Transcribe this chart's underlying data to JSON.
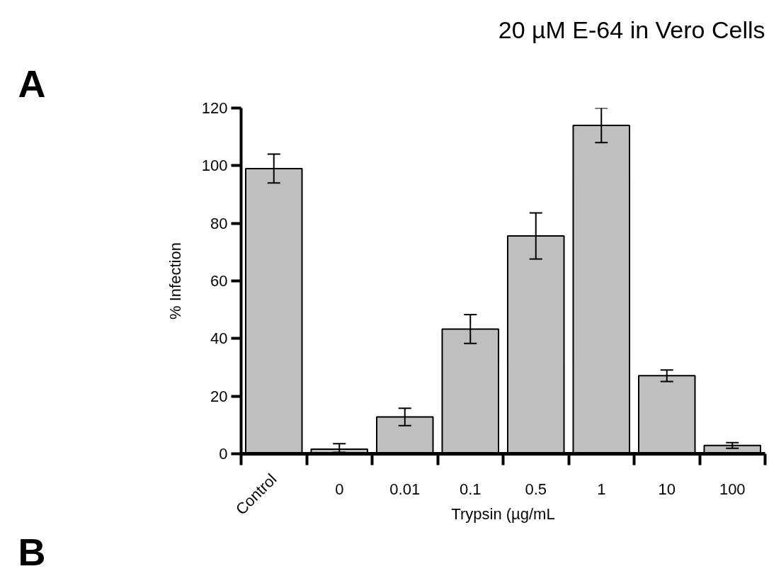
{
  "chart_data": {
    "type": "bar",
    "title": "20 µM E-64 in Vero Cells",
    "xlabel": "Trypsin (µg/mL",
    "ylabel": "% Infection",
    "categories": [
      "Control",
      "0",
      "0.01",
      "0.1",
      "0.5",
      "1",
      "10",
      "100"
    ],
    "values": [
      99,
      1.6,
      12.8,
      43.3,
      75.6,
      114,
      27.1,
      2.9
    ],
    "errors": [
      5,
      [
        0.5,
        3.5
      ],
      3,
      5,
      8,
      6,
      2,
      1
    ],
    "color": "#bfbfbf",
    "ylim": [
      0,
      120
    ],
    "yticks": [
      0,
      20,
      40,
      60,
      80,
      100,
      120
    ],
    "annotations": [
      "A",
      "B"
    ]
  }
}
